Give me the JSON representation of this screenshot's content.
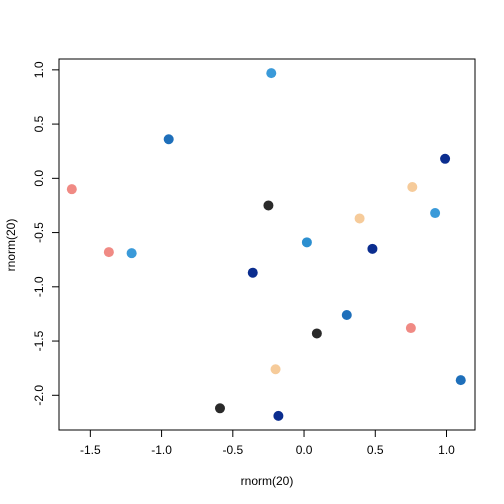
{
  "chart_data": {
    "type": "scatter",
    "title": "",
    "xlabel": "rnorm(20)",
    "ylabel": "rnorm(20)",
    "xlim": [
      -1.72,
      1.2
    ],
    "ylim": [
      -2.32,
      1.1
    ],
    "xticks": [
      "-1.5",
      "-1.0",
      "-0.5",
      "0.0",
      "0.5",
      "1.0"
    ],
    "xtick_values": [
      -1.5,
      -1.0,
      -0.5,
      0.0,
      0.5,
      1.0
    ],
    "yticks": [
      "-2.0",
      "-1.5",
      "-1.0",
      "-0.5",
      "0.0",
      "0.5",
      "1.0"
    ],
    "ytick_values": [
      -2.0,
      -1.5,
      -1.0,
      -0.5,
      0.0,
      0.5,
      1.0
    ],
    "grid": false,
    "legend": "none",
    "points": [
      {
        "x": -0.23,
        "y": 0.97,
        "color": "#3A9AD9"
      },
      {
        "x": -0.95,
        "y": 0.36,
        "color": "#1E6FBA"
      },
      {
        "x": 0.99,
        "y": 0.18,
        "color": "#0B2D8F"
      },
      {
        "x": -1.63,
        "y": -0.1,
        "color": "#F08A84"
      },
      {
        "x": 0.76,
        "y": -0.08,
        "color": "#F6CB9A"
      },
      {
        "x": -0.25,
        "y": -0.25,
        "color": "#2A2A2A"
      },
      {
        "x": 0.92,
        "y": -0.32,
        "color": "#3A9AD9"
      },
      {
        "x": 0.39,
        "y": -0.37,
        "color": "#F6CB9A"
      },
      {
        "x": 0.02,
        "y": -0.59,
        "color": "#2C8FD0"
      },
      {
        "x": 0.48,
        "y": -0.65,
        "color": "#0B2D8F"
      },
      {
        "x": -1.37,
        "y": -0.68,
        "color": "#F08A84"
      },
      {
        "x": -1.21,
        "y": -0.69,
        "color": "#3A9AD9"
      },
      {
        "x": -0.36,
        "y": -0.87,
        "color": "#0B2D8F"
      },
      {
        "x": 0.3,
        "y": -1.26,
        "color": "#1E6FBA"
      },
      {
        "x": 0.75,
        "y": -1.38,
        "color": "#F08A84"
      },
      {
        "x": 0.09,
        "y": -1.43,
        "color": "#2A2A2A"
      },
      {
        "x": -0.2,
        "y": -1.76,
        "color": "#F6CB9A"
      },
      {
        "x": 1.1,
        "y": -1.86,
        "color": "#1E6FBA"
      },
      {
        "x": -0.59,
        "y": -2.12,
        "color": "#2A2A2A"
      },
      {
        "x": -0.18,
        "y": -2.19,
        "color": "#0B2D8F"
      }
    ]
  }
}
